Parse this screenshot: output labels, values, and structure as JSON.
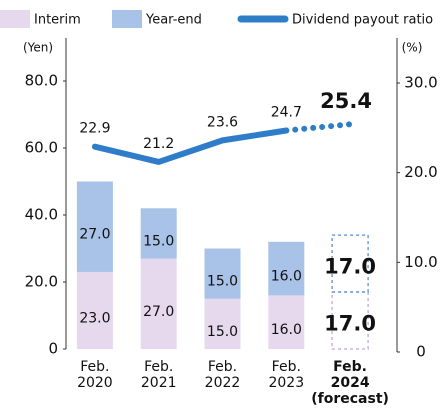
{
  "chart_data": {
    "type": "bar",
    "categories": [
      "Feb. 2020",
      "Feb. 2021",
      "Feb. 2022",
      "Feb. 2023",
      "Feb. 2024 (forecast)"
    ],
    "series": [
      {
        "name": "Interim",
        "color": "#e6d9ee",
        "values": [
          23.0,
          27.0,
          15.0,
          16.0,
          17.0
        ],
        "value_labels": [
          "23.0",
          "27.0",
          "15.0",
          "16.0",
          "17.0"
        ]
      },
      {
        "name": "Year-end",
        "color": "#a9c2e8",
        "values": [
          27.0,
          15.0,
          15.0,
          16.0,
          17.0
        ],
        "value_labels": [
          "27.0",
          "15.0",
          "15.0",
          "16.0",
          "17.0"
        ]
      },
      {
        "name": "Dividend payout ratio",
        "color": "#2f7dc9",
        "axis": "y2",
        "values": [
          22.9,
          21.2,
          23.6,
          24.7,
          25.4
        ]
      }
    ],
    "y_label": "(Yen)",
    "y2_label": "(%)",
    "ylim": [
      0,
      80
    ],
    "yticks": [
      0,
      {
        "value": 20,
        "label": "20.0"
      },
      {
        "value": 40,
        "label": "40.0"
      },
      {
        "value": 60,
        "label": "60.0"
      },
      {
        "value": 80,
        "label": "80.0"
      }
    ],
    "y2lim": [
      0,
      30
    ],
    "y2ticks": [
      0,
      {
        "value": 10,
        "label": "10.0"
      },
      {
        "value": 20,
        "label": "20.0"
      },
      {
        "value": 30,
        "label": "30.0"
      }
    ]
  }
}
